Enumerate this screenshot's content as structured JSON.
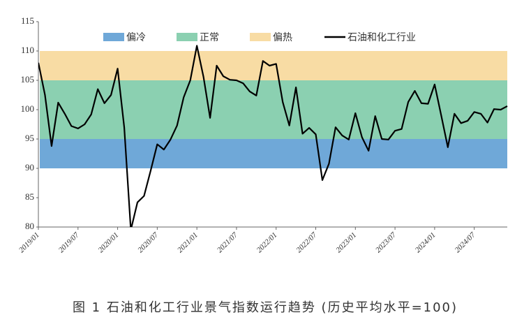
{
  "chart_data": {
    "type": "line",
    "title": "图 1  石油和化工行业景气指数运行趋势 (历史平均水平=100)",
    "categories": [
      "2019/01",
      null,
      null,
      null,
      null,
      null,
      "2019/07",
      null,
      null,
      null,
      null,
      null,
      "2020/01",
      null,
      null,
      null,
      null,
      null,
      "2020/07",
      null,
      null,
      null,
      null,
      null,
      "2021/01",
      null,
      null,
      null,
      null,
      null,
      "2021/07",
      null,
      null,
      null,
      null,
      null,
      "2022/01",
      null,
      null,
      null,
      null,
      null,
      "2022/07",
      null,
      null,
      null,
      null,
      null,
      "2023/01",
      null,
      null,
      null,
      null,
      null,
      "2023/07",
      null,
      null,
      null,
      null,
      null,
      "2024/01",
      null,
      null,
      null,
      null,
      null,
      "2024/07",
      null,
      null,
      null,
      null,
      null
    ],
    "series": [
      {
        "name": "石油和化工行业",
        "color": "#000000",
        "values": [
          108,
          102.5,
          93.8,
          101.2,
          99.3,
          97.2,
          96.8,
          97.5,
          99.2,
          103.5,
          101.1,
          102.5,
          107,
          97,
          79.5,
          84.2,
          85.3,
          89.6,
          94.1,
          93.2,
          94.9,
          97.3,
          102.1,
          105.0,
          110.9,
          105.6,
          98.6,
          107.5,
          105.7,
          105.1,
          105.0,
          104.5,
          103.1,
          102.4,
          108.3,
          107.5,
          107.8,
          101.3,
          97.3,
          103.8,
          95.9,
          96.9,
          95.8,
          88.0,
          90.8,
          97.0,
          95.6,
          94.9,
          99.4,
          95.3,
          93.0,
          98.9,
          95.0,
          94.9,
          96.4,
          96.7,
          101.3,
          103.2,
          101.1,
          101.0,
          104.3,
          99.0,
          93.6,
          99.3,
          97.7,
          98.1,
          99.6,
          99.3,
          97.8,
          100.1,
          100.0,
          100.6
        ]
      }
    ],
    "bands": [
      {
        "name": "偏冷",
        "color": "#6fa8d8",
        "range": [
          90,
          95
        ]
      },
      {
        "name": "正常",
        "color": "#8bd0b1",
        "range": [
          95,
          105
        ]
      },
      {
        "name": "偏热",
        "color": "#f8dca4",
        "range": [
          105,
          110
        ]
      }
    ],
    "ylim": [
      80,
      115
    ],
    "yticks": [
      80,
      85,
      90,
      95,
      100,
      105,
      110,
      115
    ]
  }
}
